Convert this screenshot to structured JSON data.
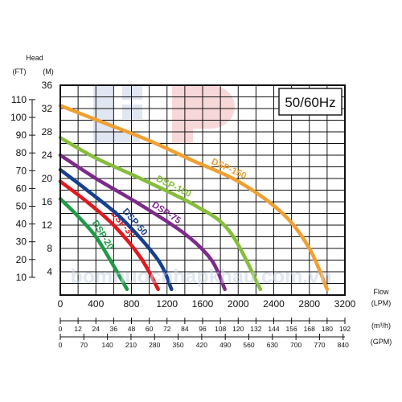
{
  "chart_data": {
    "type": "line",
    "frequency_label": "50/60Hz",
    "y_title": "Head",
    "y_units": [
      "(FT)",
      "(M)"
    ],
    "x_title": "Flow",
    "x_units": [
      "(LPM)",
      "(m³/h)",
      "(GPM)"
    ],
    "xlim": [
      0,
      3200
    ],
    "ylim": [
      0,
      36
    ],
    "grid": true,
    "y_ticks_m": [
      "0",
      "4",
      "8",
      "12",
      "16",
      "20",
      "24",
      "28",
      "32",
      "36"
    ],
    "y_ticks_ft": [
      "10",
      "20",
      "30",
      "40",
      "50",
      "60",
      "70",
      "80",
      "90",
      "100",
      "110"
    ],
    "x_ticks_lpm": [
      "0",
      "400",
      "800",
      "1200",
      "1600",
      "2000",
      "2400",
      "2800",
      "3200"
    ],
    "x_ticks_m3h": [
      "0",
      "12",
      "24",
      "36",
      "48",
      "60",
      "72",
      "84",
      "96",
      "108",
      "120",
      "132",
      "144",
      "156",
      "168",
      "180",
      "192"
    ],
    "x_ticks_gpm": [
      "0",
      "70",
      "140",
      "210",
      "280",
      "350",
      "420",
      "490",
      "560",
      "630",
      "700",
      "770",
      "840"
    ],
    "series": [
      {
        "name": "DSP-20",
        "color": "#1f9a47",
        "x": [
          0,
          200,
          400,
          600,
          750
        ],
        "y": [
          16.5,
          13.5,
          10,
          5,
          1
        ]
      },
      {
        "name": "DSP-30",
        "color": "#e0191e",
        "x": [
          0,
          300,
          600,
          900,
          1100
        ],
        "y": [
          19.5,
          16,
          12,
          6.5,
          1
        ]
      },
      {
        "name": "DSP-50",
        "color": "#173f8f",
        "x": [
          0,
          300,
          700,
          1100,
          1250
        ],
        "y": [
          21.5,
          18,
          13,
          6,
          1
        ]
      },
      {
        "name": "DSP-75",
        "color": "#7d2a8c",
        "x": [
          0,
          400,
          900,
          1400,
          1700,
          1850
        ],
        "y": [
          24,
          20,
          15.5,
          10.5,
          6,
          1
        ]
      },
      {
        "name": "DSP-100",
        "color": "#86bd3b",
        "x": [
          0,
          400,
          900,
          1500,
          1900,
          2250
        ],
        "y": [
          27,
          23.5,
          20,
          15.5,
          11,
          1
        ]
      },
      {
        "name": "DSP-150",
        "color": "#f0a031",
        "x": [
          0,
          500,
          1000,
          1500,
          2000,
          2500,
          2800,
          3000
        ],
        "y": [
          32.5,
          29.5,
          26.5,
          23,
          19.5,
          14,
          8,
          1
        ]
      }
    ]
  },
  "watermark": "bomnuocnhapkhau.com.vn"
}
